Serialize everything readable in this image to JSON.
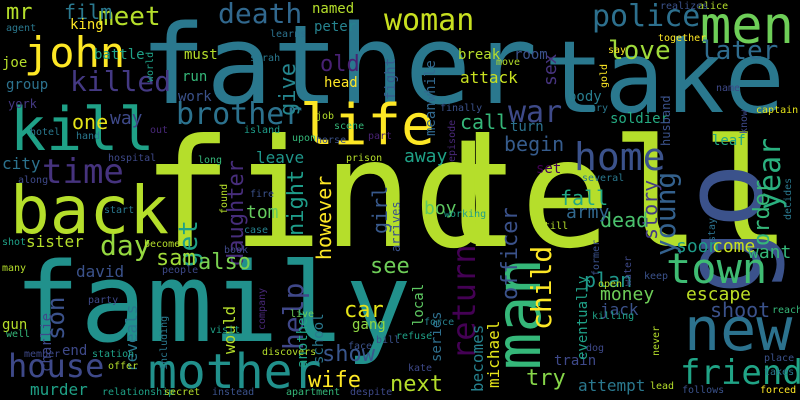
{
  "words": [
    {
      "text": "find",
      "color": "#b5de2b"
    },
    {
      "text": "tell",
      "color": "#b5de2b"
    },
    {
      "text": "father",
      "color": "#2a788e"
    },
    {
      "text": "take",
      "color": "#2a788e"
    },
    {
      "text": "family",
      "color": "#21918c"
    },
    {
      "text": "go",
      "color": "#3b528b"
    },
    {
      "text": "back",
      "color": "#b5de2b"
    },
    {
      "text": "kill",
      "color": "#1fa187"
    },
    {
      "text": "man",
      "color": "#35b779"
    },
    {
      "text": "new",
      "color": "#2c728e"
    },
    {
      "text": "mother",
      "color": "#21918c"
    },
    {
      "text": "life",
      "color": "#fde725"
    },
    {
      "text": "men",
      "color": "#6ece58"
    },
    {
      "text": "john",
      "color": "#fde725"
    },
    {
      "text": "town",
      "color": "#3fbc73"
    },
    {
      "text": "woman",
      "color": "#c8e020"
    },
    {
      "text": "police",
      "color": "#2d708e"
    },
    {
      "text": "home",
      "color": "#3b528b"
    },
    {
      "text": "friend",
      "color": "#20a486"
    },
    {
      "text": "house",
      "color": "#3e4989"
    },
    {
      "text": "time",
      "color": "#46337e"
    },
    {
      "text": "killed",
      "color": "#443983"
    },
    {
      "text": "brother",
      "color": "#2c728e"
    },
    {
      "text": "death",
      "color": "#31688e"
    },
    {
      "text": "make",
      "color": "#b8de29"
    },
    {
      "text": "meet",
      "color": "#b5de2b"
    },
    {
      "text": "return",
      "color": "#440154"
    },
    {
      "text": "child",
      "color": "#fde725"
    },
    {
      "text": "love",
      "color": "#9fda3a"
    },
    {
      "text": "later",
      "color": "#2f6c8e"
    },
    {
      "text": "war",
      "color": "#3e4a89"
    },
    {
      "text": "day",
      "color": "#95d840"
    },
    {
      "text": "young",
      "color": "#34618d"
    },
    {
      "text": "year",
      "color": "#2ab07f"
    },
    {
      "text": "escape",
      "color": "#bddf26"
    },
    {
      "text": "help",
      "color": "#3f4788"
    },
    {
      "text": "get",
      "color": "#1fa187"
    },
    {
      "text": "son",
      "color": "#3b528b"
    },
    {
      "text": "wife",
      "color": "#fde725"
    },
    {
      "text": "show",
      "color": "#39568c"
    },
    {
      "text": "next",
      "color": "#b5de2b"
    },
    {
      "text": "try",
      "color": "#86d549"
    },
    {
      "text": "money",
      "color": "#6ece58"
    },
    {
      "text": "order",
      "color": "#35b779"
    },
    {
      "text": "story",
      "color": "#443a83"
    },
    {
      "text": "officer",
      "color": "#3b528b"
    },
    {
      "text": "daughter",
      "color": "#472d7b"
    },
    {
      "text": "night",
      "color": "#1e9c89"
    },
    {
      "text": "however",
      "color": "#fde725"
    },
    {
      "text": "give",
      "color": "#25858e"
    },
    {
      "text": "also",
      "color": "#7ad151"
    },
    {
      "text": "sam",
      "color": "#a0da39"
    },
    {
      "text": "see",
      "color": "#6ece58"
    },
    {
      "text": "car",
      "color": "#e5e419"
    },
    {
      "text": "old",
      "color": "#482173"
    },
    {
      "text": "film",
      "color": "#2a788e"
    },
    {
      "text": "mr",
      "color": "#b5de2b"
    },
    {
      "text": "one",
      "color": "#e5e419"
    },
    {
      "text": "way",
      "color": "#3e4989"
    },
    {
      "text": "begin",
      "color": "#365c8d"
    },
    {
      "text": "call",
      "color": "#35b779"
    },
    {
      "text": "fall",
      "color": "#22a884"
    },
    {
      "text": "dead",
      "color": "#4ac16d"
    },
    {
      "text": "plan",
      "color": "#1f978b"
    },
    {
      "text": "shoot",
      "color": "#3b528b"
    },
    {
      "text": "soon",
      "color": "#1e9c89"
    },
    {
      "text": "come",
      "color": "#c8e020"
    },
    {
      "text": "want",
      "color": "#35b779"
    },
    {
      "text": "army",
      "color": "#31688e"
    },
    {
      "text": "boy",
      "color": "#5ec962"
    },
    {
      "text": "tom",
      "color": "#65cb5e"
    },
    {
      "text": "girl",
      "color": "#38598c"
    },
    {
      "text": "sister",
      "color": "#b5de2b"
    },
    {
      "text": "david",
      "color": "#3b528b"
    },
    {
      "text": "city",
      "color": "#2c728e"
    },
    {
      "text": "murder",
      "color": "#1fa187"
    },
    {
      "text": "attempt",
      "color": "#2a788e"
    },
    {
      "text": "jack",
      "color": "#3b528b"
    },
    {
      "text": "becomes",
      "color": "#26818e"
    },
    {
      "text": "michael",
      "color": "#e5e419"
    },
    {
      "text": "school",
      "color": "#2a788e"
    },
    {
      "text": "another",
      "color": "#20a386"
    },
    {
      "text": "would",
      "color": "#b5de2b"
    },
    {
      "text": "reveals",
      "color": "#2a788e"
    },
    {
      "text": "charlie",
      "color": "#3e4989"
    },
    {
      "text": "end",
      "color": "#3e4989"
    },
    {
      "text": "gun",
      "color": "#b5de2b"
    },
    {
      "text": "train",
      "color": "#3e4989"
    },
    {
      "text": "series",
      "color": "#2e6f8e"
    },
    {
      "text": "local",
      "color": "#5ec962"
    },
    {
      "text": "eventually",
      "color": "#1fa187"
    },
    {
      "text": "gang",
      "color": "#8fd744"
    },
    {
      "text": "soldier",
      "color": "#25ab82"
    },
    {
      "text": "leaf",
      "color": "#22a884"
    },
    {
      "text": "set",
      "color": "#440154"
    },
    {
      "text": "away",
      "color": "#1fa187"
    },
    {
      "text": "leave",
      "color": "#1f968b"
    },
    {
      "text": "body",
      "color": "#287d8e"
    },
    {
      "text": "turn",
      "color": "#2c728e"
    },
    {
      "text": "attack",
      "color": "#c8e020"
    },
    {
      "text": "meanwhile",
      "color": "#31688e"
    },
    {
      "text": "head",
      "color": "#fde725"
    },
    {
      "text": "fight",
      "color": "#375a8c"
    },
    {
      "text": "must",
      "color": "#b5de2b"
    },
    {
      "text": "run",
      "color": "#35b779"
    },
    {
      "text": "asks",
      "color": "#26828e"
    },
    {
      "text": "work",
      "color": "#3b528b"
    },
    {
      "text": "named",
      "color": "#b5de2b"
    },
    {
      "text": "peter",
      "color": "#26828e"
    },
    {
      "text": "break",
      "color": "#b5de2b"
    },
    {
      "text": "room",
      "color": "#3b528b"
    },
    {
      "text": "king",
      "color": "#fde725"
    },
    {
      "text": "battle",
      "color": "#1fa187"
    },
    {
      "text": "joe",
      "color": "#b5de2b"
    },
    {
      "text": "group",
      "color": "#2c728e"
    },
    {
      "text": "york",
      "color": "#443983"
    },
    {
      "text": "hotel",
      "color": "#2a788e"
    },
    {
      "text": "hospital",
      "color": "#3e4989"
    },
    {
      "text": "island",
      "color": "#1e9c89"
    },
    {
      "text": "scene",
      "color": "#35b779"
    },
    {
      "text": "job",
      "color": "#b5de2b"
    },
    {
      "text": "prison",
      "color": "#b5de2b"
    },
    {
      "text": "episode",
      "color": "#482878"
    },
    {
      "text": "sex",
      "color": "#46337e"
    },
    {
      "text": "husband",
      "color": "#3b528b"
    },
    {
      "text": "know",
      "color": "#3e4989"
    },
    {
      "text": "captain",
      "color": "#e5e419"
    },
    {
      "text": "name",
      "color": "#3e4989"
    },
    {
      "text": "mary",
      "color": "#2a788e"
    },
    {
      "text": "say",
      "color": "#fde725"
    },
    {
      "text": "alice",
      "color": "#b5de2b"
    },
    {
      "text": "together",
      "color": "#fde725"
    },
    {
      "text": "realizes",
      "color": "#3b528b"
    },
    {
      "text": "move",
      "color": "#b5de2b"
    },
    {
      "text": "finally",
      "color": "#3b528b"
    },
    {
      "text": "sarah",
      "color": "#2a788e"
    },
    {
      "text": "learns",
      "color": "#2c728e"
    },
    {
      "text": "world",
      "color": "#1fa187"
    },
    {
      "text": "agent",
      "color": "#2a788e"
    },
    {
      "text": "upon",
      "color": "#35b779"
    },
    {
      "text": "horse",
      "color": "#3b528b"
    },
    {
      "text": "part",
      "color": "#482173"
    },
    {
      "text": "kate",
      "color": "#3e4989"
    },
    {
      "text": "force",
      "color": "#26828e"
    },
    {
      "text": "refuse",
      "color": "#1fa187"
    },
    {
      "text": "face",
      "color": "#3b528b"
    },
    {
      "text": "visit",
      "color": "#1fa187"
    },
    {
      "text": "people",
      "color": "#3e4989"
    },
    {
      "text": "live",
      "color": "#6ece58"
    },
    {
      "text": "book",
      "color": "#3e4989"
    },
    {
      "text": "case",
      "color": "#26828e"
    },
    {
      "text": "arrives",
      "color": "#3b528b"
    },
    {
      "text": "still",
      "color": "#b5de2b"
    },
    {
      "text": "working",
      "color": "#1fa187"
    },
    {
      "text": "former",
      "color": "#3b528b"
    },
    {
      "text": "several",
      "color": "#2a788e"
    },
    {
      "text": "open",
      "color": "#b5de2b"
    },
    {
      "text": "water",
      "color": "#3e4989"
    },
    {
      "text": "keep",
      "color": "#3b528b"
    },
    {
      "text": "killing",
      "color": "#1fa187"
    },
    {
      "text": "dog",
      "color": "#3e4989"
    },
    {
      "text": "never",
      "color": "#b5de2b"
    },
    {
      "text": "place",
      "color": "#3b528b"
    },
    {
      "text": "takes",
      "color": "#2a788e"
    },
    {
      "text": "reach",
      "color": "#35b779"
    },
    {
      "text": "stay",
      "color": "#2c728e"
    },
    {
      "text": "decides",
      "color": "#2a788e"
    },
    {
      "text": "forced",
      "color": "#fde725"
    },
    {
      "text": "follows",
      "color": "#3b528b"
    },
    {
      "text": "lead",
      "color": "#b5de2b"
    },
    {
      "text": "station",
      "color": "#1fa187"
    },
    {
      "text": "member",
      "color": "#3e4989"
    },
    {
      "text": "offer",
      "color": "#b5de2b"
    },
    {
      "text": "well",
      "color": "#35b779"
    },
    {
      "text": "many",
      "color": "#b5de2b"
    },
    {
      "text": "shot",
      "color": "#1fa187"
    },
    {
      "text": "along",
      "color": "#3e4989"
    },
    {
      "text": "start",
      "color": "#2a788e"
    },
    {
      "text": "become",
      "color": "#b5de2b"
    },
    {
      "text": "party",
      "color": "#3e4989"
    },
    {
      "text": "relationship",
      "color": "#1fa187"
    },
    {
      "text": "secret",
      "color": "#b5de2b"
    },
    {
      "text": "instead",
      "color": "#3b528b"
    },
    {
      "text": "apartment",
      "color": "#35b779"
    },
    {
      "text": "despite",
      "color": "#3e4989"
    },
    {
      "text": "discovers",
      "color": "#b5de2b"
    },
    {
      "text": "including",
      "color": "#2a788e"
    },
    {
      "text": "bill",
      "color": "#3b528b"
    },
    {
      "text": "out",
      "color": "#482878"
    },
    {
      "text": "hand",
      "color": "#2a788e"
    },
    {
      "text": "long",
      "color": "#35b779"
    },
    {
      "text": "fire",
      "color": "#3b528b"
    },
    {
      "text": "found",
      "color": "#b5de2b"
    },
    {
      "text": "company",
      "color": "#482878"
    },
    {
      "text": "gold",
      "color": "#fde725"
    }
  ]
}
